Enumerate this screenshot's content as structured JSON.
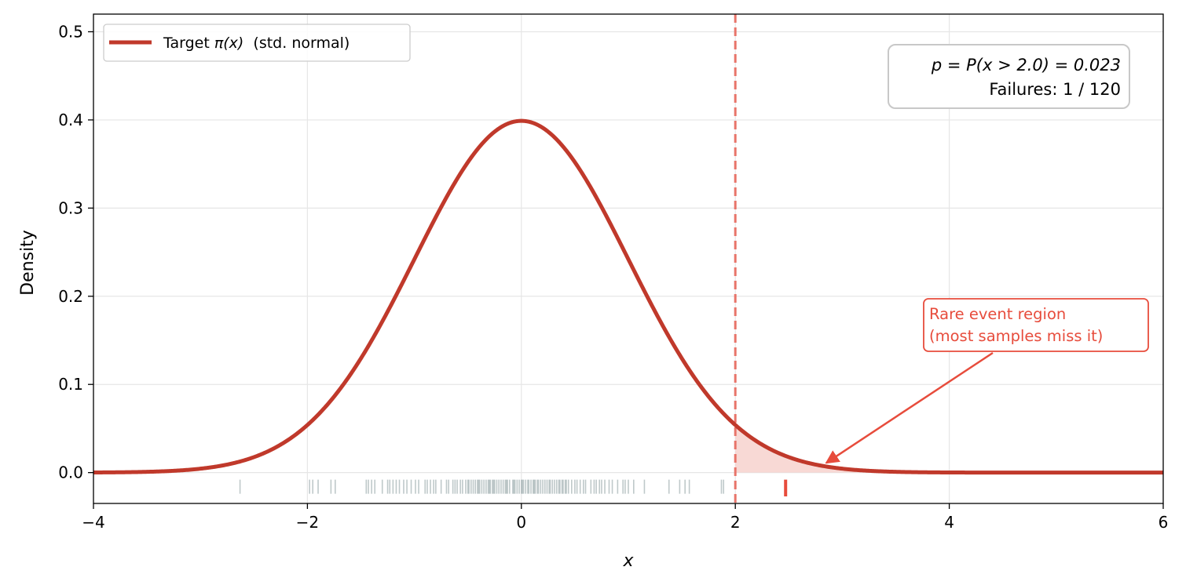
{
  "chart_data": {
    "type": "line",
    "xlabel": "x",
    "ylabel": "Density",
    "xlim": [
      -4,
      6
    ],
    "ylim": [
      -0.035,
      0.52
    ],
    "xticks": [
      -4,
      -2,
      0,
      2,
      4,
      6
    ],
    "xtick_labels": [
      "−4",
      "−2",
      "0",
      "2",
      "4",
      "6"
    ],
    "yticks": [
      0.0,
      0.1,
      0.2,
      0.3,
      0.4,
      0.5
    ],
    "ytick_labels": [
      "0.0",
      "0.1",
      "0.2",
      "0.3",
      "0.4",
      "0.5"
    ],
    "grid": true,
    "legend_position": "top-left",
    "series": [
      {
        "name": "Target π(x)  (std. normal)",
        "legend_prefix": "Target ",
        "legend_symbol": "π(x)",
        "legend_suffix": "  (std. normal)",
        "function": "standard-normal-pdf",
        "color": "#c0392b"
      }
    ],
    "threshold": {
      "x": 2.0,
      "color": "#e8746a",
      "style": "dashed"
    },
    "shaded_region": {
      "from": 2.0,
      "to": 6,
      "color": "#f6cfcb"
    },
    "info_box": {
      "line1": "p = P(x > 2.0) = 0.023",
      "line2": "Failures: 1 / 120",
      "position": "top-right"
    },
    "annotation": {
      "line1": "Rare event region",
      "line2": "(most samples miss it)",
      "color": "#e74c3c",
      "arrow_to": {
        "x": 2.85,
        "y": 0.011
      },
      "text_anchor": {
        "x": 4.8,
        "y": 0.16
      }
    },
    "samples": {
      "count": 120,
      "failures": 1,
      "normal_color": "#95a5a6",
      "failure_color": "#e74c3c",
      "values": [
        -2.63,
        -1.98,
        -1.95,
        -1.9,
        -1.78,
        -1.74,
        -1.45,
        -1.43,
        -1.4,
        -1.37,
        -1.3,
        -1.23,
        -1.2,
        -1.17,
        -1.14,
        -1.1,
        -1.07,
        -1.03,
        -0.99,
        -0.9,
        -0.85,
        -0.82,
        -0.8,
        -0.75,
        -0.7,
        -0.64,
        -0.6,
        -0.57,
        -0.55,
        -0.52,
        -0.5,
        -0.47,
        -0.45,
        -0.43,
        -0.41,
        -0.39,
        -0.37,
        -0.35,
        -0.33,
        -0.31,
        -0.29,
        -0.27,
        -0.25,
        -0.23,
        -0.21,
        -0.19,
        -0.17,
        -0.15,
        -0.13,
        -0.11,
        -0.08,
        -0.06,
        -0.04,
        -0.02,
        0.0,
        0.02,
        0.04,
        0.07,
        0.09,
        0.11,
        0.13,
        0.15,
        0.18,
        0.2,
        0.22,
        0.24,
        0.27,
        0.29,
        0.31,
        0.33,
        0.36,
        0.38,
        0.41,
        0.44,
        0.47,
        0.5,
        0.55,
        0.6,
        0.65,
        0.7,
        0.75,
        0.78,
        0.82,
        0.85,
        0.9,
        0.95,
        1.0,
        1.05,
        1.15,
        1.38,
        1.48,
        1.53,
        1.57,
        1.87,
        1.89,
        -0.96,
        -0.68,
        -0.49,
        -0.26,
        -0.14,
        -0.07,
        0.06,
        0.12,
        0.26,
        0.35,
        0.42,
        0.58,
        0.68,
        -1.25,
        -0.88,
        -0.62,
        -0.3,
        0.01,
        0.16,
        0.39,
        0.52,
        0.73,
        0.97,
        -0.4,
        2.47
      ]
    }
  }
}
